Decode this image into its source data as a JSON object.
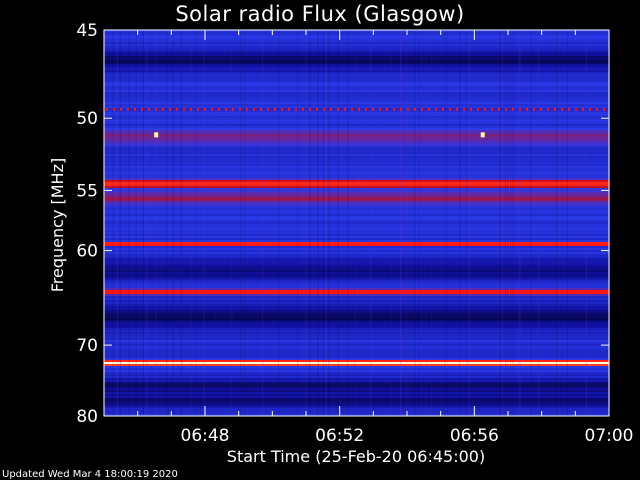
{
  "title": "Solar radio Flux (Glasgow)",
  "updated": "Updated Wed Mar  4 18:00:19 2020",
  "chart_data": {
    "type": "heatmap",
    "title": "Solar radio Flux (Glasgow)",
    "xlabel": "Start Time (25-Feb-20 06:45:00)",
    "ylabel": "Frequency [MHz]",
    "x_ticks": [
      "06:48",
      "06:52",
      "06:56",
      "07:00"
    ],
    "x_tick_minutes": [
      48,
      52,
      56,
      60
    ],
    "xlim_minutes": [
      45,
      60
    ],
    "y_ticks": [
      45,
      50,
      55,
      60,
      70,
      80
    ],
    "ylim": [
      45,
      80
    ],
    "y_scale": "reciprocal",
    "colormap": [
      "#000014",
      "#1010a0",
      "#2a3ae8",
      "#5a2ab0",
      "#b01030",
      "#ff1010",
      "#ff6020",
      "#ffff90",
      "#ffffff"
    ],
    "background_intensity": 0.22,
    "bands": [
      {
        "freq": 45.4,
        "width": 0.15,
        "intensity": 0.05
      },
      {
        "freq": 49.45,
        "width": 0.1,
        "intensity": 0.62,
        "dashed": true
      },
      {
        "freq": 51.2,
        "width": 0.8,
        "intensity": 0.42
      },
      {
        "freq": 54.5,
        "width": 0.45,
        "intensity": 0.68
      },
      {
        "freq": 55.6,
        "width": 0.8,
        "intensity": 0.45
      },
      {
        "freq": 59.4,
        "width": 0.25,
        "intensity": 0.72
      },
      {
        "freq": 64.0,
        "width": 0.4,
        "intensity": 0.66
      },
      {
        "freq": 72.3,
        "width": 0.45,
        "intensity": 0.95
      }
    ],
    "dark_bands": [
      {
        "freq": 46.6,
        "width": 0.6
      },
      {
        "freq": 61.8,
        "width": 0.9
      },
      {
        "freq": 66.8,
        "width": 1.5
      },
      {
        "freq": 75.5,
        "width": 1.2
      },
      {
        "freq": 77.8,
        "width": 1.0
      }
    ],
    "bright_spots": [
      {
        "minute": 46.55,
        "freq": 51.1
      },
      {
        "minute": 56.25,
        "freq": 51.1
      }
    ]
  }
}
